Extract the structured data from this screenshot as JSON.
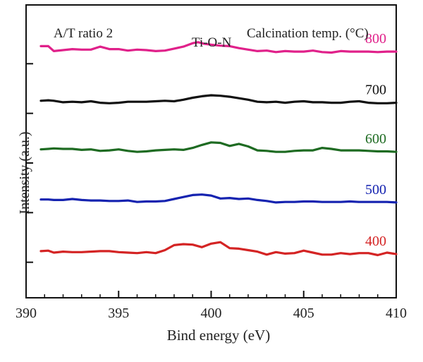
{
  "chart_data": {
    "type": "line",
    "title": "",
    "xlabel": "Bind energy (eV)",
    "ylabel": "Intensity (a.u.)",
    "xlim": [
      390,
      410
    ],
    "x_ticks": [
      390,
      395,
      400,
      405,
      410
    ],
    "y_ticks": [
      1,
      2,
      3,
      4,
      5
    ],
    "ylim": [
      0,
      5.9
    ],
    "grid": false,
    "annotations": {
      "ratio": "A/T ratio 2",
      "peak": "Ti-O-N",
      "legend_title": "Calcination temp. (°C)"
    },
    "series": [
      {
        "name": "800",
        "color": "#e0218a",
        "x": [
          390.8,
          391.2,
          391.5,
          392.0,
          392.5,
          393.0,
          393.5,
          394.0,
          394.5,
          395.0,
          395.5,
          396.0,
          396.5,
          397.0,
          397.5,
          398.0,
          398.5,
          399.0,
          399.3,
          399.6,
          400.0,
          400.5,
          401.0,
          401.5,
          402.0,
          402.5,
          403.0,
          403.5,
          404.0,
          404.5,
          405.0,
          405.5,
          406.0,
          406.5,
          407.0,
          407.5,
          408.0,
          408.5,
          409.0,
          409.5,
          410.0
        ],
        "y": [
          5.07,
          5.07,
          4.97,
          4.99,
          5.01,
          5.0,
          5.0,
          5.06,
          5.01,
          5.01,
          4.98,
          5.0,
          4.99,
          4.97,
          4.98,
          5.02,
          5.06,
          5.13,
          5.15,
          5.12,
          5.1,
          5.08,
          5.07,
          5.03,
          5.0,
          4.97,
          4.98,
          4.95,
          4.97,
          4.96,
          4.96,
          4.98,
          4.95,
          4.94,
          4.97,
          4.96,
          4.96,
          4.96,
          4.95,
          4.96,
          4.96
        ]
      },
      {
        "name": "700",
        "color": "#111111",
        "x": [
          390.8,
          391.2,
          391.5,
          392.0,
          392.5,
          393.0,
          393.5,
          394.0,
          394.5,
          395.0,
          395.5,
          396.0,
          396.5,
          397.0,
          397.5,
          398.0,
          398.5,
          399.0,
          399.5,
          400.0,
          400.5,
          401.0,
          401.5,
          402.0,
          402.5,
          403.0,
          403.5,
          404.0,
          404.5,
          405.0,
          405.5,
          406.0,
          406.5,
          407.0,
          407.5,
          408.0,
          408.5,
          409.0,
          409.5,
          410.0
        ],
        "y": [
          3.97,
          3.98,
          3.97,
          3.94,
          3.95,
          3.94,
          3.96,
          3.93,
          3.92,
          3.93,
          3.95,
          3.95,
          3.95,
          3.96,
          3.97,
          3.96,
          3.99,
          4.03,
          4.06,
          4.08,
          4.07,
          4.05,
          4.02,
          3.99,
          3.95,
          3.94,
          3.95,
          3.93,
          3.95,
          3.96,
          3.94,
          3.94,
          3.93,
          3.93,
          3.95,
          3.96,
          3.93,
          3.92,
          3.92,
          3.93
        ]
      },
      {
        "name": "600",
        "color": "#1e6b22",
        "x": [
          390.8,
          391.2,
          391.5,
          392.0,
          392.5,
          393.0,
          393.5,
          394.0,
          394.5,
          395.0,
          395.5,
          396.0,
          396.5,
          397.0,
          397.5,
          398.0,
          398.5,
          399.0,
          399.5,
          400.0,
          400.5,
          401.0,
          401.5,
          402.0,
          402.5,
          403.0,
          403.5,
          404.0,
          404.5,
          405.0,
          405.5,
          406.0,
          406.5,
          407.0,
          407.5,
          408.0,
          408.5,
          409.0,
          409.5,
          410.0
        ],
        "y": [
          2.99,
          3.0,
          3.01,
          3.0,
          3.0,
          2.98,
          2.99,
          2.96,
          2.97,
          2.99,
          2.96,
          2.94,
          2.95,
          2.97,
          2.98,
          2.99,
          2.98,
          3.02,
          3.08,
          3.13,
          3.12,
          3.06,
          3.1,
          3.05,
          2.97,
          2.96,
          2.94,
          2.94,
          2.96,
          2.97,
          2.97,
          3.02,
          3.0,
          2.97,
          2.97,
          2.97,
          2.96,
          2.95,
          2.95,
          2.94
        ]
      },
      {
        "name": "500",
        "color": "#1523b0",
        "x": [
          390.8,
          391.2,
          391.5,
          392.0,
          392.5,
          393.0,
          393.5,
          394.0,
          394.5,
          395.0,
          395.5,
          396.0,
          396.5,
          397.0,
          397.5,
          398.0,
          398.5,
          399.0,
          399.5,
          400.0,
          400.5,
          401.0,
          401.5,
          402.0,
          402.5,
          403.0,
          403.5,
          404.0,
          404.5,
          405.0,
          405.5,
          406.0,
          406.5,
          407.0,
          407.5,
          408.0,
          408.5,
          409.0,
          409.5,
          410.0
        ],
        "y": [
          1.98,
          1.98,
          1.97,
          1.97,
          1.99,
          1.97,
          1.96,
          1.96,
          1.95,
          1.95,
          1.96,
          1.93,
          1.94,
          1.94,
          1.95,
          1.99,
          2.03,
          2.07,
          2.08,
          2.06,
          2.0,
          2.01,
          1.99,
          2.0,
          1.97,
          1.95,
          1.92,
          1.93,
          1.93,
          1.94,
          1.94,
          1.93,
          1.93,
          1.93,
          1.94,
          1.93,
          1.93,
          1.93,
          1.93,
          1.92
        ]
      },
      {
        "name": "400",
        "color": "#d42424",
        "x": [
          390.8,
          391.2,
          391.5,
          392.0,
          392.5,
          393.0,
          393.5,
          394.0,
          394.5,
          395.0,
          395.5,
          396.0,
          396.5,
          397.0,
          397.5,
          398.0,
          398.5,
          399.0,
          399.5,
          400.0,
          400.5,
          401.0,
          401.5,
          402.0,
          402.5,
          403.0,
          403.5,
          404.0,
          404.5,
          405.0,
          405.5,
          406.0,
          406.5,
          407.0,
          407.5,
          408.0,
          408.5,
          409.0,
          409.5,
          410.0
        ],
        "y": [
          0.94,
          0.95,
          0.91,
          0.93,
          0.92,
          0.92,
          0.93,
          0.94,
          0.94,
          0.92,
          0.91,
          0.9,
          0.92,
          0.9,
          0.96,
          1.06,
          1.08,
          1.07,
          1.02,
          1.09,
          1.12,
          1.0,
          0.99,
          0.96,
          0.93,
          0.87,
          0.92,
          0.89,
          0.9,
          0.95,
          0.91,
          0.87,
          0.87,
          0.9,
          0.88,
          0.9,
          0.9,
          0.86,
          0.91,
          0.88
        ]
      }
    ]
  }
}
